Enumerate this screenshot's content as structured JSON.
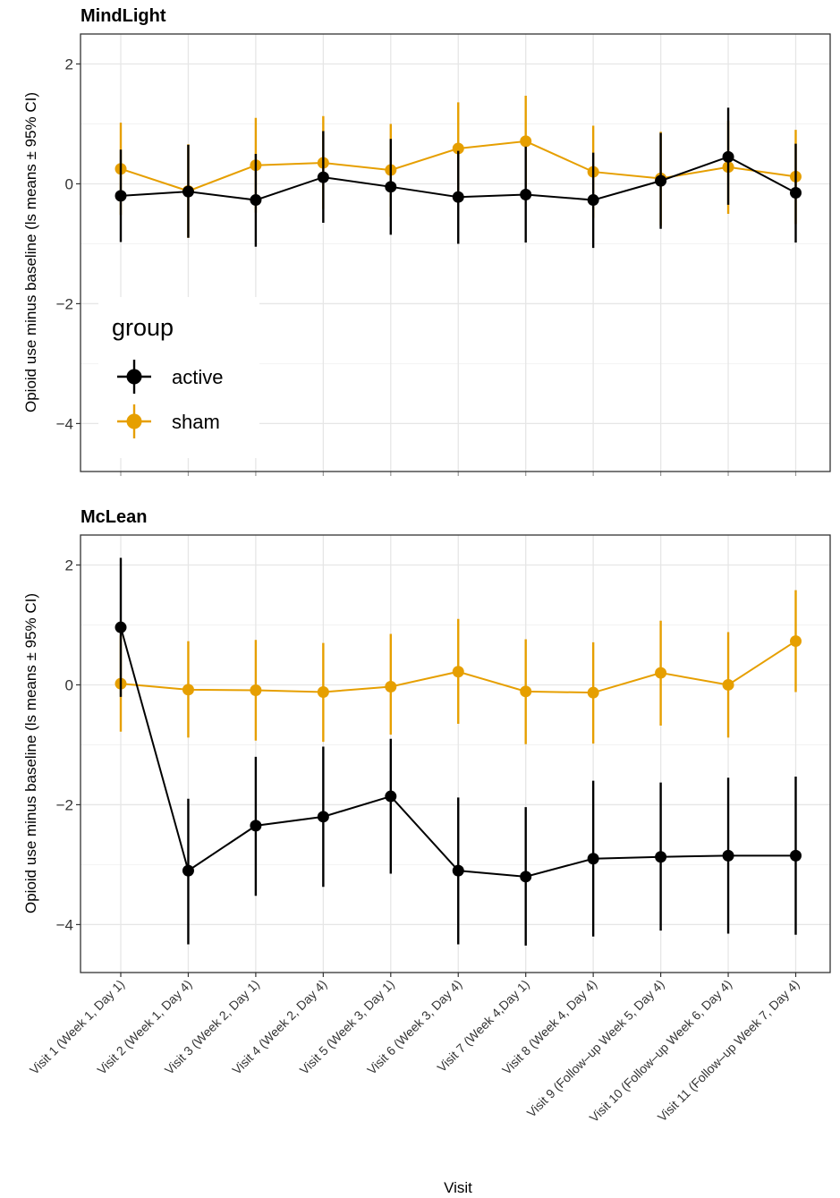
{
  "chart_data": [
    {
      "type": "line",
      "title": "MindLight",
      "ylabel": "Opioid use minus baseline (ls means ± 95% CI)",
      "xlabel": "",
      "ylim": [
        -4.8,
        2.5
      ],
      "yticks": [
        2,
        0,
        -2,
        -4
      ],
      "ytick_labels": [
        "2",
        "0",
        "−2",
        "−4"
      ],
      "grid": true,
      "categories": [
        "Visit 1 (Week 1, Day 1)",
        "Visit 2 (Week 1, Day 4)",
        "Visit 3 (Week 2, Day 1)",
        "Visit 4 (Week 2, Day 4)",
        "Visit 5 (Week 3, Day 1)",
        "Visit 6 (Week 3, Day 4)",
        "Visit 7 (Week 4,Day 1)",
        "Visit 8 (Week 4, Day 4)",
        "Visit 9 (Follow–up Week 5, Day 4)",
        "Visit 10 (Follow–up Week 6, Day 4)",
        "Visit 11 (Follow–up Week 7, Day 4)"
      ],
      "series": [
        {
          "name": "active",
          "color": "#000000",
          "values": [
            -0.2,
            -0.13,
            -0.27,
            0.11,
            -0.05,
            -0.22,
            -0.18,
            -0.27,
            0.05,
            0.45,
            -0.15
          ],
          "lower": [
            -0.97,
            -0.9,
            -1.05,
            -0.65,
            -0.85,
            -1.0,
            -0.98,
            -1.07,
            -0.75,
            -0.35,
            -0.98
          ],
          "upper": [
            0.57,
            0.65,
            0.5,
            0.88,
            0.75,
            0.55,
            0.62,
            0.52,
            0.85,
            1.27,
            0.67
          ]
        },
        {
          "name": "sham",
          "color": "#E69F00",
          "values": [
            0.25,
            -0.12,
            0.31,
            0.35,
            0.23,
            0.59,
            0.71,
            0.2,
            0.09,
            0.28,
            0.12
          ],
          "lower": [
            -0.52,
            -0.9,
            -0.48,
            -0.42,
            -0.55,
            -0.18,
            -0.05,
            -0.57,
            -0.7,
            -0.5,
            -0.67
          ],
          "upper": [
            1.02,
            0.66,
            1.1,
            1.13,
            1.0,
            1.36,
            1.47,
            0.97,
            0.87,
            1.05,
            0.9
          ]
        }
      ],
      "legend": {
        "title": "group",
        "placement": "bottom-left inside",
        "entries": [
          "active",
          "sham"
        ]
      }
    },
    {
      "type": "line",
      "title": "McLean",
      "ylabel": "Opioid use minus baseline (ls means ± 95% CI)",
      "xlabel": "Visit",
      "ylim": [
        -4.8,
        2.5
      ],
      "yticks": [
        2,
        0,
        -2,
        -4
      ],
      "ytick_labels": [
        "2",
        "0",
        "−2",
        "−4"
      ],
      "grid": true,
      "categories": [
        "Visit 1 (Week 1, Day 1)",
        "Visit 2 (Week 1, Day 4)",
        "Visit 3 (Week 2, Day 1)",
        "Visit 4 (Week 2, Day 4)",
        "Visit 5 (Week 3, Day 1)",
        "Visit 6 (Week 3, Day 4)",
        "Visit 7 (Week 4,Day 1)",
        "Visit 8 (Week 4, Day 4)",
        "Visit 9 (Follow–up Week 5, Day 4)",
        "Visit 10 (Follow–up Week 6, Day 4)",
        "Visit 11 (Follow–up Week 7, Day 4)"
      ],
      "series": [
        {
          "name": "active",
          "color": "#000000",
          "values": [
            0.96,
            -3.1,
            -2.35,
            -2.2,
            -1.86,
            -3.1,
            -3.2,
            -2.9,
            -2.87,
            -2.85,
            -2.85
          ],
          "lower": [
            -0.2,
            -4.33,
            -3.52,
            -3.37,
            -3.15,
            -4.33,
            -4.35,
            -4.2,
            -4.1,
            -4.15,
            -4.17
          ],
          "upper": [
            2.12,
            -1.9,
            -1.2,
            -1.03,
            -0.9,
            -1.88,
            -2.04,
            -1.6,
            -1.63,
            -1.55,
            -1.53
          ]
        },
        {
          "name": "sham",
          "color": "#E69F00",
          "values": [
            0.02,
            -0.08,
            -0.09,
            -0.12,
            -0.03,
            0.22,
            -0.11,
            -0.13,
            0.2,
            0.0,
            0.73
          ],
          "lower": [
            -0.78,
            -0.88,
            -0.93,
            -0.95,
            -0.83,
            -0.65,
            -0.99,
            -0.98,
            -0.68,
            -0.88,
            -0.12
          ],
          "upper": [
            0.82,
            0.73,
            0.75,
            0.7,
            0.85,
            1.1,
            0.76,
            0.71,
            1.07,
            0.88,
            1.58
          ]
        }
      ]
    }
  ]
}
